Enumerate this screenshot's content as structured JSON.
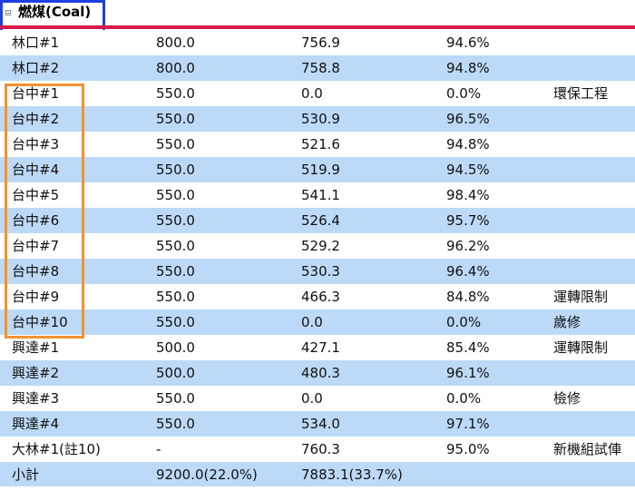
{
  "section": {
    "title": "燃煤(Coal)"
  },
  "colors": {
    "title_highlight": "#1f3fe0",
    "group_highlight": "#f5922e",
    "rule": "#d5174b",
    "row_alt": "#bcdaf7"
  },
  "rows": [
    {
      "name": "林口#1",
      "capacity": "800.0",
      "load": "756.9",
      "percent": "94.6%",
      "note": ""
    },
    {
      "name": "林口#2",
      "capacity": "800.0",
      "load": "758.8",
      "percent": "94.8%",
      "note": ""
    },
    {
      "name": "台中#1",
      "capacity": "550.0",
      "load": "0.0",
      "percent": "0.0%",
      "note": "環保工程"
    },
    {
      "name": "台中#2",
      "capacity": "550.0",
      "load": "530.9",
      "percent": "96.5%",
      "note": ""
    },
    {
      "name": "台中#3",
      "capacity": "550.0",
      "load": "521.6",
      "percent": "94.8%",
      "note": ""
    },
    {
      "name": "台中#4",
      "capacity": "550.0",
      "load": "519.9",
      "percent": "94.5%",
      "note": ""
    },
    {
      "name": "台中#5",
      "capacity": "550.0",
      "load": "541.1",
      "percent": "98.4%",
      "note": ""
    },
    {
      "name": "台中#6",
      "capacity": "550.0",
      "load": "526.4",
      "percent": "95.7%",
      "note": ""
    },
    {
      "name": "台中#7",
      "capacity": "550.0",
      "load": "529.2",
      "percent": "96.2%",
      "note": ""
    },
    {
      "name": "台中#8",
      "capacity": "550.0",
      "load": "530.3",
      "percent": "96.4%",
      "note": ""
    },
    {
      "name": "台中#9",
      "capacity": "550.0",
      "load": "466.3",
      "percent": "84.8%",
      "note": "運轉限制"
    },
    {
      "name": "台中#10",
      "capacity": "550.0",
      "load": "0.0",
      "percent": "0.0%",
      "note": "歲修"
    },
    {
      "name": "興達#1",
      "capacity": "500.0",
      "load": "427.1",
      "percent": "85.4%",
      "note": "運轉限制"
    },
    {
      "name": "興達#2",
      "capacity": "500.0",
      "load": "480.3",
      "percent": "96.1%",
      "note": ""
    },
    {
      "name": "興達#3",
      "capacity": "550.0",
      "load": "0.0",
      "percent": "0.0%",
      "note": "檢修"
    },
    {
      "name": "興達#4",
      "capacity": "550.0",
      "load": "534.0",
      "percent": "97.1%",
      "note": ""
    },
    {
      "name": "大林#1(註10)",
      "capacity": "-",
      "load": "760.3",
      "percent": "95.0%",
      "note": "新機組試俥"
    },
    {
      "name": "小計",
      "capacity": "9200.0(22.0%)",
      "load": "7883.1(33.7%)",
      "percent": "",
      "note": ""
    }
  ]
}
